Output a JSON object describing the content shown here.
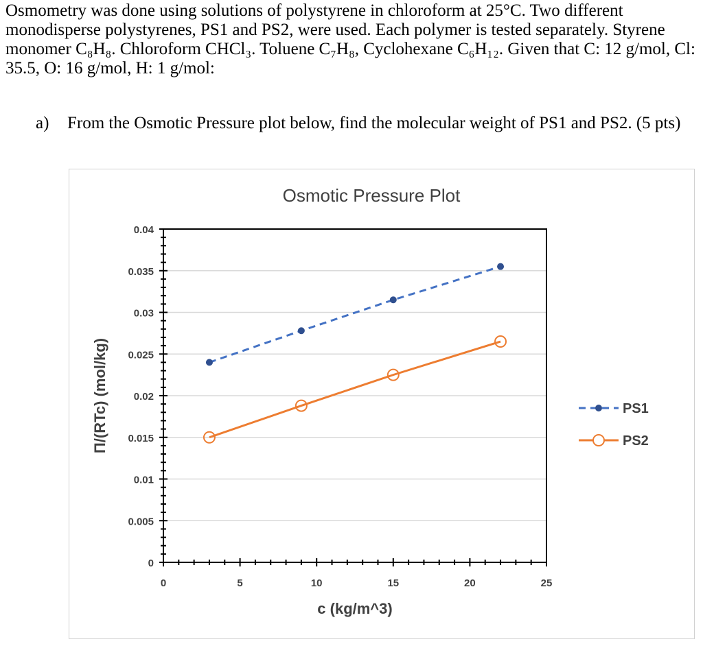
{
  "problem": {
    "intro": "Osmometry was done using solutions of polystyrene in chloroform at 25°C. Two different monodisperse polystyrenes, PS1 and PS2, were used. Each polymer is tested separately. Styrene monomer C₈H₈. Chloroform CHCl₃. Toluene C₇H₈, Cyclohexane C₆H₁₂. Given that C: 12 g/mol, Cl: 35.5, O: 16 g/mol, H: 1 g/mol:",
    "part_a_label": "a)",
    "part_a_text": "From the Osmotic Pressure plot below, find the molecular weight of PS1 and PS2. (5 pts)"
  },
  "chart_data": {
    "type": "line",
    "title": "Osmotic Pressure Plot",
    "xlabel": "c (kg/m^3)",
    "ylabel": "Π/(RTc) (mol/kg)",
    "xlim": [
      0,
      25
    ],
    "ylim": [
      0,
      0.04
    ],
    "xticks": [
      "0",
      "5",
      "10",
      "15",
      "20",
      "25"
    ],
    "yticks": [
      "0",
      "0.005",
      "0.01",
      "0.015",
      "0.02",
      "0.025",
      "0.03",
      "0.035",
      "0.04"
    ],
    "grid": "horizontal",
    "legend_position": "right",
    "series": [
      {
        "name": "PS1",
        "x": [
          3,
          9,
          15,
          22
        ],
        "y": [
          0.024,
          0.0278,
          0.0315,
          0.0355
        ],
        "color": "#4472c4",
        "line": "dashed",
        "marker": "filled-circle"
      },
      {
        "name": "PS2",
        "x": [
          3,
          9,
          15,
          22
        ],
        "y": [
          0.015,
          0.0188,
          0.0225,
          0.0265
        ],
        "color": "#ed7d31",
        "line": "solid",
        "marker": "open-circle"
      }
    ]
  }
}
